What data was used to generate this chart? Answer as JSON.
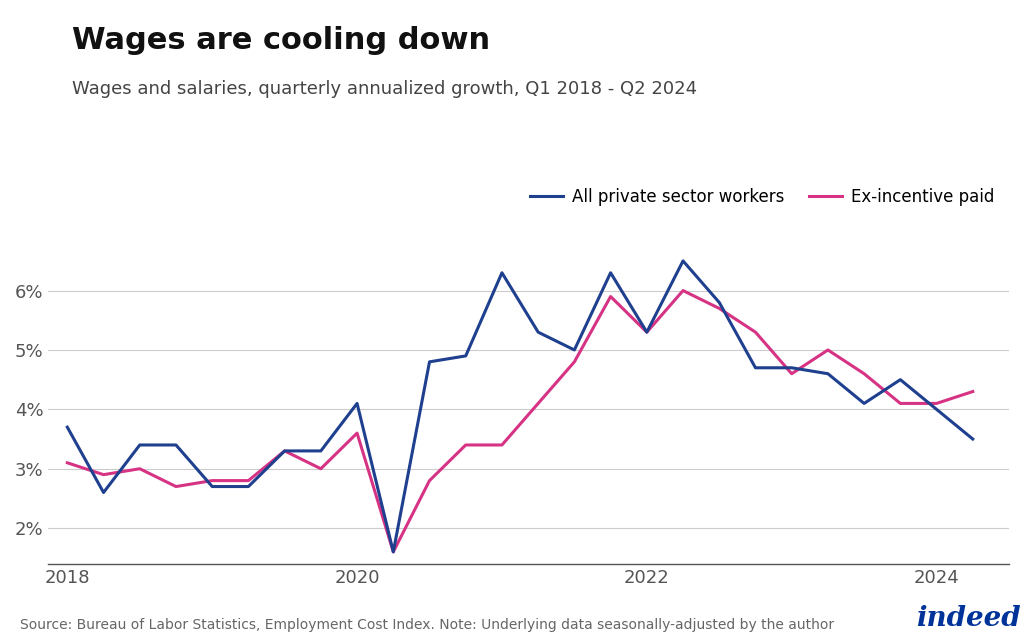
{
  "title": "Wages are cooling down",
  "subtitle": "Wages and salaries, quarterly annualized growth, Q1 2018 - Q2 2024",
  "source": "Source: Bureau of Labor Statistics, Employment Cost Index. Note: Underlying data seasonally-adjusted by the author",
  "legend_labels": [
    "All private sector workers",
    "Ex-incentive paid"
  ],
  "line1_color": "#1f3f8f",
  "line2_color": "#d63384",
  "background_color": "#ffffff",
  "ylim": [
    0.014,
    0.068
  ],
  "yticks": [
    0.02,
    0.03,
    0.04,
    0.05,
    0.06
  ],
  "ytick_labels": [
    "2%",
    "3%",
    "4%",
    "5%",
    "6%"
  ],
  "x_numeric": [
    2018.0,
    2018.25,
    2018.5,
    2018.75,
    2019.0,
    2019.25,
    2019.5,
    2019.75,
    2020.0,
    2020.25,
    2020.5,
    2020.75,
    2021.0,
    2021.25,
    2021.5,
    2021.75,
    2022.0,
    2022.25,
    2022.5,
    2022.75,
    2023.0,
    2023.25,
    2023.5,
    2023.75,
    2024.0,
    2024.25
  ],
  "all_private": [
    0.037,
    0.026,
    0.034,
    0.034,
    0.027,
    0.027,
    0.033,
    0.033,
    0.041,
    0.016,
    0.048,
    0.049,
    0.063,
    0.053,
    0.05,
    0.063,
    0.053,
    0.065,
    0.058,
    0.047,
    0.047,
    0.046,
    0.041,
    0.045,
    0.04,
    0.035
  ],
  "ex_incentive": [
    0.031,
    0.029,
    0.03,
    0.027,
    0.028,
    0.028,
    0.033,
    0.03,
    0.036,
    0.016,
    0.028,
    0.034,
    0.034,
    0.041,
    0.048,
    0.059,
    0.053,
    0.06,
    0.057,
    0.053,
    0.046,
    0.05,
    0.046,
    0.041,
    0.041,
    0.043
  ],
  "xtick_positions": [
    2018.0,
    2020.0,
    2022.0,
    2024.0
  ],
  "xtick_labels": [
    "2018",
    "2020",
    "2022",
    "2024"
  ],
  "title_fontsize": 22,
  "subtitle_fontsize": 13,
  "tick_fontsize": 13,
  "legend_fontsize": 12,
  "source_fontsize": 10,
  "line_width": 2.2
}
